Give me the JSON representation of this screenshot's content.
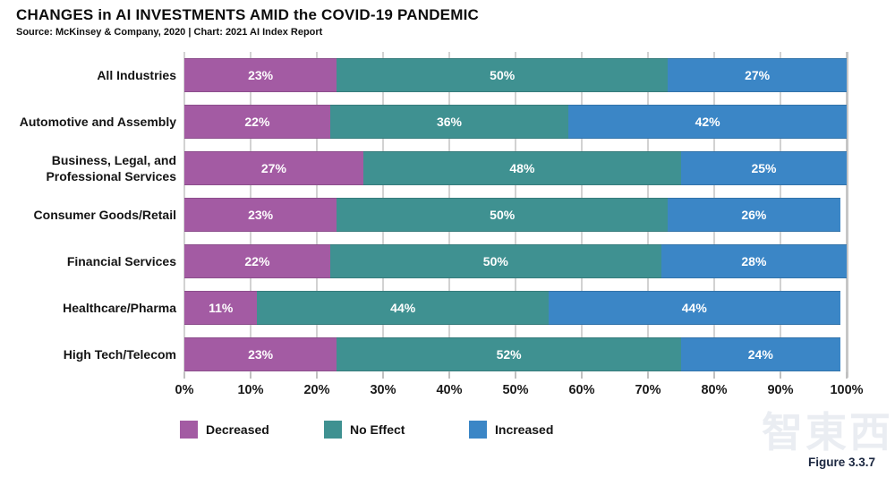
{
  "header": {
    "title": "CHANGES in AI INVESTMENTS AMID the COVID-19 PANDEMIC",
    "source": "Source: McKinsey & Company, 2020 | Chart: 2021 AI Index Report"
  },
  "chart_data": {
    "type": "bar",
    "orientation": "horizontal",
    "stacked": true,
    "unit": "%",
    "title": "CHANGES in AI INVESTMENTS AMID the COVID-19 PANDEMIC",
    "categories": [
      "All Industries",
      "Automotive and Assembly",
      "Business, Legal, and Professional Services",
      "Consumer Goods/Retail",
      "Financial Services",
      "Healthcare/Pharma",
      "High Tech/Telecom"
    ],
    "series": [
      {
        "name": "Decreased",
        "color": "#a35ba3",
        "values": [
          23,
          22,
          27,
          23,
          22,
          11,
          23
        ]
      },
      {
        "name": "No Effect",
        "color": "#3f9191",
        "values": [
          50,
          36,
          48,
          50,
          50,
          44,
          52
        ]
      },
      {
        "name": "Increased",
        "color": "#3b86c6",
        "values": [
          27,
          42,
          25,
          26,
          28,
          44,
          24
        ]
      }
    ],
    "xlim": [
      0,
      100
    ],
    "x_tick_labels": [
      "0%",
      "10%",
      "20%",
      "30%",
      "40%",
      "50%",
      "60%",
      "70%",
      "80%",
      "90%",
      "100%"
    ],
    "grid": true,
    "legend_position": "bottom",
    "bar_label_format": "value%"
  },
  "footer": {
    "figure_label": "Figure 3.3.7",
    "watermark": "智東西"
  }
}
